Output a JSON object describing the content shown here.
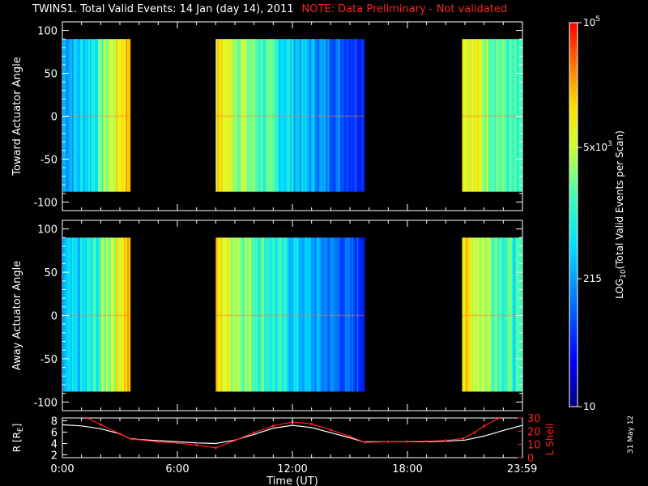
{
  "title": {
    "main": "TWINS1. Total Valid Events: 14 Jan (day  14), 2011",
    "note": "NOTE: Data Preliminary - Not validated",
    "note_color": "#ff2020"
  },
  "datestamp": "31 May 12",
  "chart_data": [
    {
      "type": "heatmap",
      "name": "toward",
      "ylabel": "Toward Actuator Angle",
      "ylim": [
        -110,
        110
      ],
      "yticks": [
        100,
        50,
        0,
        -50,
        -100
      ],
      "xlim": [
        0,
        24
      ],
      "data_blocks": [
        {
          "x": [
            0.0,
            3.55
          ],
          "y": [
            -88,
            90
          ],
          "trend": "increasing",
          "start_color": "cyan-blue",
          "end_color": "orange"
        },
        {
          "x": [
            8.0,
            15.75
          ],
          "y": [
            -88,
            90
          ],
          "trend": "decreasing",
          "start_color": "yellow",
          "end_color": "blue"
        },
        {
          "x": [
            20.85,
            23.99
          ],
          "y": [
            -88,
            90
          ],
          "trend": "decreasing",
          "start_color": "yellow-orange",
          "end_color": "cyan-green"
        }
      ]
    },
    {
      "type": "heatmap",
      "name": "away",
      "ylabel": "Away Actuator Angle",
      "ylim": [
        -110,
        110
      ],
      "yticks": [
        100,
        50,
        0,
        -50,
        -100
      ],
      "xlim": [
        0,
        24
      ],
      "data_blocks": [
        {
          "x": [
            0.0,
            3.55
          ],
          "y": [
            -88,
            90
          ],
          "trend": "increasing",
          "start_color": "cyan-blue",
          "end_color": "orange"
        },
        {
          "x": [
            8.0,
            15.75
          ],
          "y": [
            -88,
            90
          ],
          "trend": "decreasing",
          "start_color": "yellow",
          "end_color": "blue"
        },
        {
          "x": [
            20.85,
            23.99
          ],
          "y": [
            -88,
            90
          ],
          "trend": "decreasing",
          "start_color": "yellow-orange",
          "end_color": "cyan-green"
        }
      ]
    },
    {
      "type": "line",
      "name": "orbit",
      "ylabel_left": "R [R",
      "ylabel_left_sub": "E",
      "ylabel_left_end": "]",
      "ylabel_right": "L Shell",
      "ylim_left": [
        1.5,
        8.5
      ],
      "yticks_left": [
        2,
        4,
        6,
        8
      ],
      "ylim_right": [
        0,
        30
      ],
      "yticks_right": [
        0,
        10,
        20,
        30
      ],
      "xlabel": "Time (UT)",
      "xlim": [
        0,
        24
      ],
      "xtick_values": [
        0,
        6,
        12,
        18,
        23.983
      ],
      "xtick_labels": [
        "0:00",
        "6:00",
        "12:00",
        "18:00",
        "23:59"
      ],
      "series": [
        {
          "color": "#ffffff",
          "axis": "left",
          "x": [
            0,
            1,
            2,
            3,
            3.5,
            4,
            5,
            6,
            7,
            8,
            9,
            10,
            11,
            12,
            13,
            14,
            15,
            15.7,
            16,
            17,
            18,
            19,
            20,
            21,
            22,
            23,
            24
          ],
          "y": [
            7.3,
            7.1,
            6.6,
            5.7,
            4.9,
            4.7,
            4.5,
            4.3,
            4.1,
            4.0,
            4.6,
            5.6,
            6.7,
            7.2,
            6.8,
            5.9,
            5.0,
            4.3,
            4.3,
            4.3,
            4.3,
            4.3,
            4.4,
            4.6,
            5.3,
            6.3,
            7.2
          ]
        },
        {
          "color": "#ff2020",
          "axis": "right",
          "x": [
            1.3,
            2,
            3,
            3.6,
            5,
            6,
            7,
            8,
            9,
            10,
            11,
            12,
            13,
            14,
            15,
            15.8,
            17,
            18,
            19,
            20,
            20.9,
            21.5,
            22,
            22.8
          ],
          "y": [
            30,
            25,
            18,
            14,
            12,
            11,
            9.5,
            7.5,
            13,
            19,
            24,
            27,
            25.5,
            21,
            16,
            11.5,
            12,
            12.2,
            12.4,
            13,
            14.5,
            19,
            24,
            30
          ]
        }
      ]
    },
    {
      "type": "heatmap",
      "name": "colorbar",
      "ylabel": "LOG",
      "ylabel_sub": "10",
      "ylabel_end": "(Total Valid  Events per Scan)",
      "scale": "log",
      "range": [
        10,
        100000
      ],
      "tick_values": [
        10,
        215,
        5000,
        100000
      ],
      "tick_labels": [
        {
          "base": "10",
          "sup": ""
        },
        {
          "base": "215",
          "sup": ""
        },
        {
          "base": "5x10",
          "sup": "3"
        },
        {
          "base": "10",
          "sup": "5"
        }
      ]
    }
  ]
}
